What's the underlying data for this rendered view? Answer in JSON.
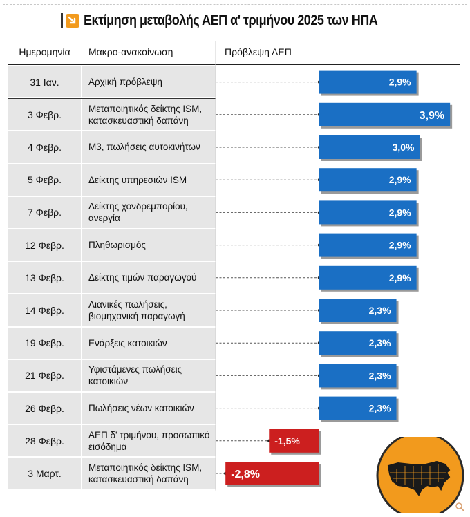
{
  "title": "Εκτίμηση μεταβολής ΑΕΠ α' τριμήνου 2025 των ΗΠΑ",
  "headers": {
    "date": "Ημερομηνία",
    "macro": "Μακρο-ανακοίνωση",
    "forecast": "Πρόβλεψη ΑΕΠ"
  },
  "chart_data": {
    "type": "bar",
    "orientation": "horizontal",
    "title": "Εκτίμηση μεταβολής ΑΕΠ α' τριμήνου 2025 των ΗΠΑ",
    "categories": [
      "31 Ιαν.",
      "3 Φεβρ.",
      "4 Φεβρ.",
      "5 Φεβρ.",
      "7 Φεβρ.",
      "12 Φεβρ.",
      "13 Φεβρ.",
      "14 Φεβρ.",
      "19 Φεβρ.",
      "21 Φεβρ.",
      "26 Φεβρ.",
      "28 Φεβρ.",
      "3 Μαρτ."
    ],
    "announcements": [
      "Αρχική πρόβλεψη",
      "Μεταποιητικός δείκτης ISM, κατασκευαστική δαπάνη",
      "Μ3, πωλήσεις αυτοκινήτων",
      "Δείκτης υπηρεσιών ISM",
      "Δείκτης χονδρεμπορίου, ανεργία",
      "Πληθωρισμός",
      "Δείκτης τιμών παραγωγού",
      "Λιανικές πωλήσεις, βιομηχανική παραγωγή",
      "Ενάρξεις κατοικιών",
      "Υφιστάμενες πωλήσεις κατοικιών",
      "Πωλήσεις νέων κατοικιών",
      "ΑΕΠ δ' τριμήνου, προσωπικό εισόδημα",
      "Μεταποιητικός δείκτης ISM, κατασκευαστική δαπάνη"
    ],
    "values": [
      2.9,
      3.9,
      3.0,
      2.9,
      2.9,
      2.9,
      2.9,
      2.3,
      2.3,
      2.3,
      2.3,
      -1.5,
      -2.8
    ],
    "labels": [
      "2,9%",
      "3,9%",
      "3,0%",
      "2,9%",
      "2,9%",
      "2,9%",
      "2,9%",
      "2,3%",
      "2,3%",
      "2,3%",
      "2,3%",
      "-1,5%",
      "-2,8%"
    ],
    "unit": "%",
    "colors": {
      "positive": "#1a6fc4",
      "negative": "#cc1f1f"
    }
  },
  "logo": {
    "icon": "usa-map-icon",
    "circle_color": "#f29a1d"
  }
}
